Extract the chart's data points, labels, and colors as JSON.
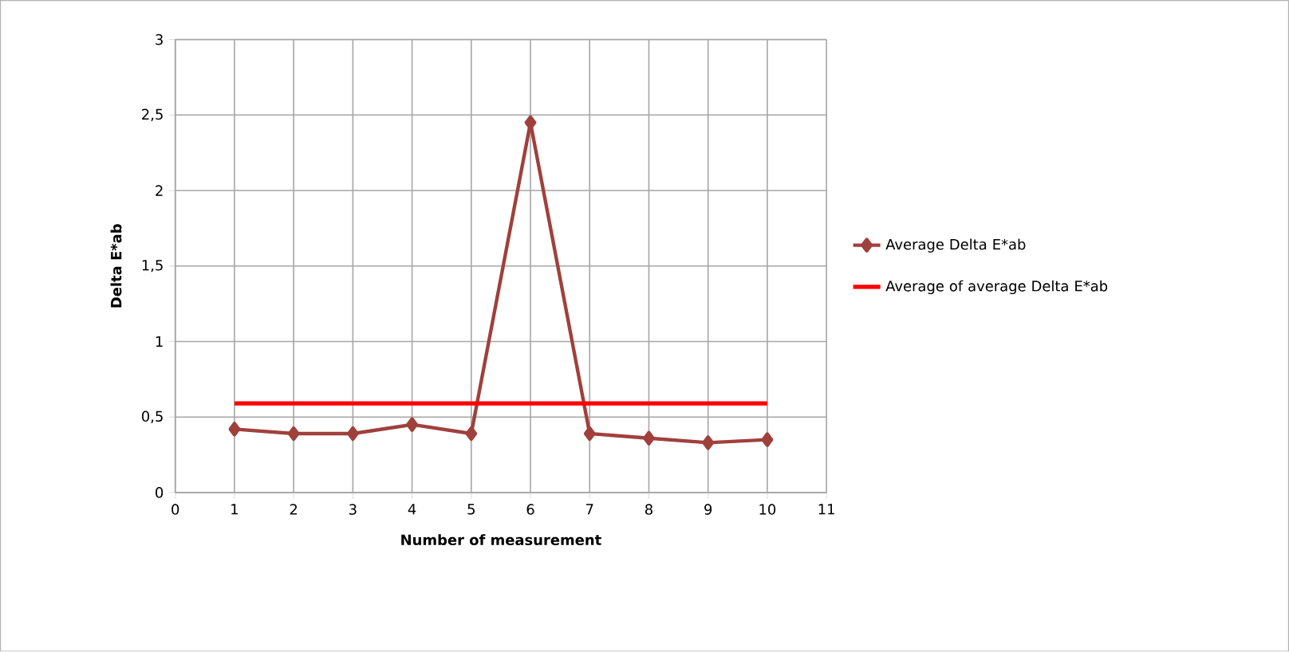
{
  "chart_data": {
    "type": "line",
    "xlabel": "Number of measurement",
    "ylabel": "Delta E*ab",
    "x": [
      1,
      2,
      3,
      4,
      5,
      6,
      7,
      8,
      9,
      10
    ],
    "series": [
      {
        "name": "Average Delta E*ab",
        "color": "#a0403c",
        "marker": "diamond",
        "values": [
          0.42,
          0.39,
          0.39,
          0.45,
          0.39,
          2.45,
          0.39,
          0.36,
          0.33,
          0.35
        ]
      },
      {
        "name": "Average of average Delta E*ab",
        "color": "#ff0000",
        "marker": "none",
        "x": [
          1,
          10
        ],
        "values": [
          0.59,
          0.59
        ]
      }
    ],
    "xlim": [
      0,
      11
    ],
    "xticks": [
      0,
      1,
      2,
      3,
      4,
      5,
      6,
      7,
      8,
      9,
      10,
      11
    ],
    "ylim": [
      0,
      3
    ],
    "yticks": [
      0,
      {
        "value": 0.5,
        "label": "0,5"
      },
      1,
      {
        "value": 1.5,
        "label": "1,5"
      },
      2,
      {
        "value": 2.5,
        "label": "2,5"
      },
      3
    ],
    "grid": true,
    "legend": "right",
    "line_style": "solid"
  }
}
